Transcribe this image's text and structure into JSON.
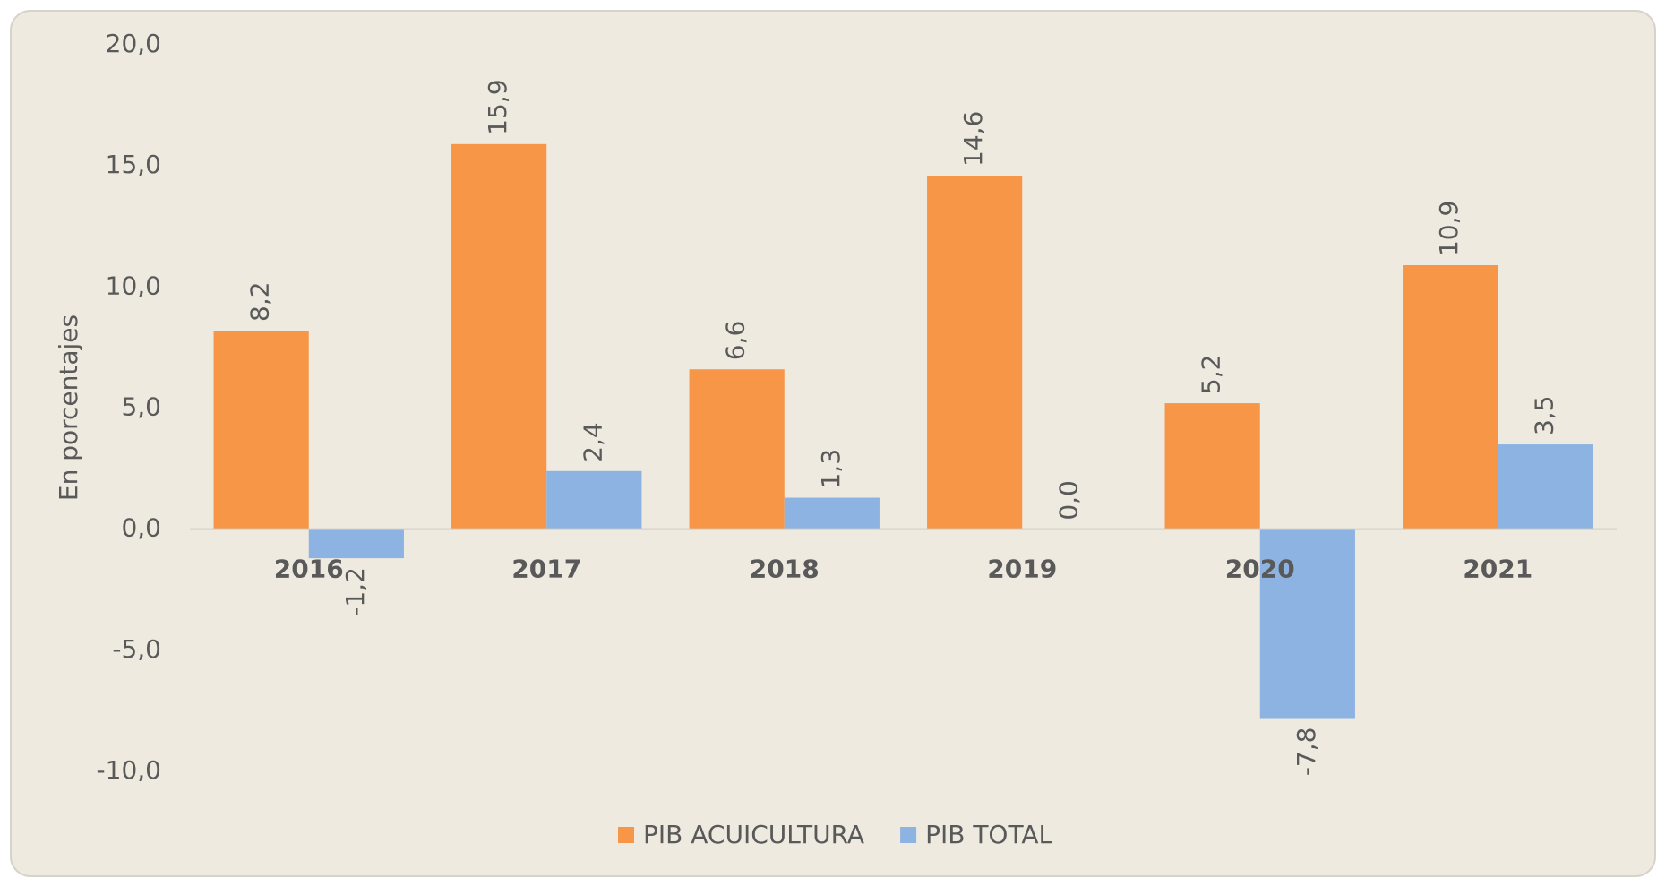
{
  "chart_data": {
    "type": "bar",
    "y_label": "En porcentajes",
    "categories": [
      "2016",
      "2017",
      "2018",
      "2019",
      "2020",
      "2021"
    ],
    "series": [
      {
        "name": "PIB ACUICULTURA",
        "color": "#F79646",
        "values": [
          8.2,
          15.9,
          6.6,
          14.6,
          5.2,
          10.9
        ],
        "value_labels": [
          "8,2",
          "15,9",
          "6,6",
          "14,6",
          "5,2",
          "10,9"
        ]
      },
      {
        "name": "PIB TOTAL",
        "color": "#8DB3E2",
        "values": [
          -1.2,
          2.4,
          1.3,
          0.0,
          -7.8,
          3.5
        ],
        "value_labels": [
          "-1,2",
          "2,4",
          "1,3",
          "0,0",
          "-7,8",
          "3,5"
        ]
      }
    ],
    "ylim": [
      -10,
      20
    ],
    "yticks": [
      {
        "value": -10,
        "label": "-10,0"
      },
      {
        "value": -5,
        "label": "-5,0"
      },
      {
        "value": 0,
        "label": "0,0"
      },
      {
        "value": 5,
        "label": "5,0"
      },
      {
        "value": 10,
        "label": "10,0"
      },
      {
        "value": 15,
        "label": "15,0"
      },
      {
        "value": 20,
        "label": "20,0"
      }
    ],
    "legend": "bottom"
  }
}
